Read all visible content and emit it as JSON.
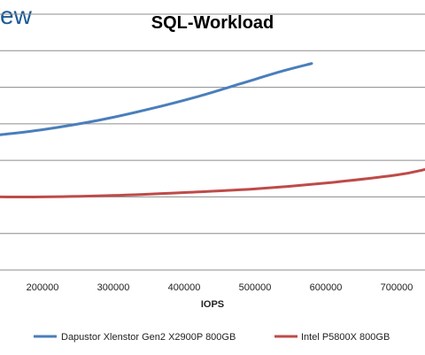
{
  "brand": {
    "partial_text": "ew"
  },
  "chart_data": {
    "type": "line",
    "title": "SQL-Workload",
    "xlabel": "IOPS",
    "ylabel": "",
    "xlim": [
      140000,
      740000
    ],
    "ylim": [
      0,
      7
    ],
    "x_ticks": [
      200000,
      300000,
      400000,
      500000,
      600000,
      700000
    ],
    "x_tick_labels": [
      "200000",
      "300000",
      "400000",
      "500000",
      "600000",
      "700000"
    ],
    "y_grid": [
      1,
      2,
      3,
      4,
      5,
      6,
      7
    ],
    "grid": "horizontal",
    "legend_position": "bottom",
    "series": [
      {
        "name": "Dapustor Xlenstor Gen2 X2900P 800GB",
        "color": "#4a7ebb",
        "x": [
          140000,
          200000,
          280000,
          350000,
          420000,
          480000,
          540000,
          580000
        ],
        "y": [
          3.7,
          3.84,
          4.1,
          4.4,
          4.75,
          5.1,
          5.45,
          5.65
        ]
      },
      {
        "name": "Intel P5800X 800GB",
        "color": "#be4b48",
        "x": [
          140000,
          200000,
          300000,
          400000,
          500000,
          600000,
          700000,
          740000
        ],
        "y": [
          2.0,
          2.0,
          2.04,
          2.12,
          2.22,
          2.38,
          2.6,
          2.75
        ]
      }
    ]
  }
}
